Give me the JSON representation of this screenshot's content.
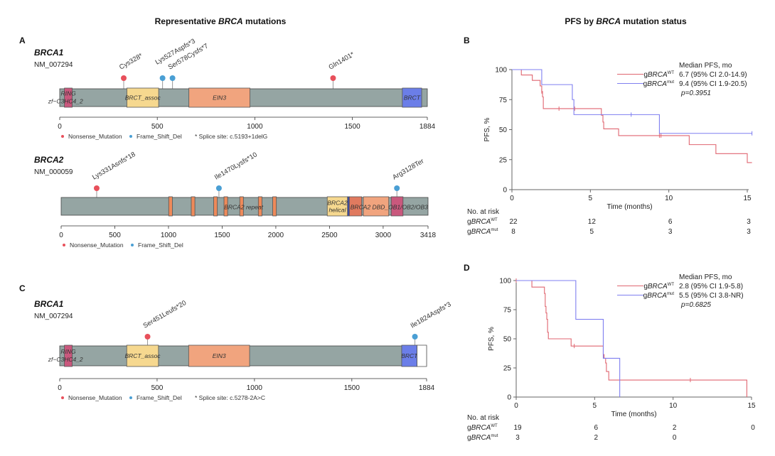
{
  "left_title": {
    "pre": "Representative ",
    "italic": "BRCA",
    "post": " mutations"
  },
  "right_title": {
    "pre": "PFS by ",
    "italic": "BRCA",
    "post": " mutation status"
  },
  "panels": {
    "A_brca1": {
      "letter": "A",
      "gene": "BRCA1",
      "transcript": "NM_007294",
      "length": 1884,
      "ticks": [
        0,
        500,
        1000,
        1500,
        1884
      ],
      "domains": [
        {
          "start": 24,
          "end": 64,
          "color": "#c9587d",
          "label": "RING"
        },
        {
          "start": 344,
          "end": 507,
          "color": "#f6d88f",
          "label": "BRCT_assoc"
        },
        {
          "start": 662,
          "end": 975,
          "color": "#f1a47e",
          "label": "EIN3"
        },
        {
          "start": 1756,
          "end": 1855,
          "color": "#6b7ee8",
          "label": "BRCT"
        }
      ],
      "extra_labels": [
        {
          "text": "zf−C3HC4_2",
          "pos": 30
        }
      ],
      "mutations": [
        {
          "label": "Cys328*",
          "pos": 328,
          "type": "nonsense"
        },
        {
          "label": "Lys527Aspfs*3",
          "pos": 527,
          "type": "frameshift"
        },
        {
          "label": "Ser578Cysfs*7",
          "pos": 578,
          "type": "frameshift"
        },
        {
          "label": "Gln1401*",
          "pos": 1401,
          "type": "nonsense"
        }
      ],
      "legend_note": "* Splice site: c.5193+1delG"
    },
    "A_brca2": {
      "gene": "BRCA2",
      "transcript": "NM_000059",
      "length": 3418,
      "ticks": [
        0,
        500,
        1000,
        1500,
        2000,
        2500,
        3000,
        3418
      ],
      "domains": [
        {
          "start": 1002,
          "end": 1036,
          "color": "#ee8a5a",
          "label": ""
        },
        {
          "start": 1212,
          "end": 1246,
          "color": "#ee8a5a",
          "label": ""
        },
        {
          "start": 1421,
          "end": 1455,
          "color": "#ee8a5a",
          "label": ""
        },
        {
          "start": 1517,
          "end": 1551,
          "color": "#ee8a5a",
          "label": ""
        },
        {
          "start": 1664,
          "end": 1698,
          "color": "#ee8a5a",
          "label": ""
        },
        {
          "start": 1837,
          "end": 1871,
          "color": "#ee8a5a",
          "label": ""
        },
        {
          "start": 1971,
          "end": 2005,
          "color": "#ee8a5a",
          "label": ""
        },
        {
          "start": 2479,
          "end": 2668,
          "color": "#f6d88f",
          "label": "BRCA2 helical"
        },
        {
          "start": 2668,
          "end": 2685,
          "color": "#3b4aa8",
          "label": ""
        },
        {
          "start": 2685,
          "end": 2800,
          "color": "#e07a5f",
          "label": ""
        },
        {
          "start": 2815,
          "end": 3052,
          "color": "#f1a47e",
          "label": ""
        },
        {
          "start": 3075,
          "end": 3185,
          "color": "#c9587d",
          "label": ""
        }
      ],
      "extra_labels": [
        {
          "text": "BRCA2 repeat",
          "pos": 1700
        },
        {
          "text": "BRCA2 DBD_OB1/OB2/OB3",
          "pos": 2960
        }
      ],
      "mutations": [
        {
          "label": "Lys331Asnfs*18",
          "pos": 331,
          "type": "nonsense"
        },
        {
          "label": "Ile1470Lysfs*10",
          "pos": 1470,
          "type": "frameshift"
        },
        {
          "label": "Arg3128Ter",
          "pos": 3128,
          "type": "frameshift"
        }
      ],
      "legend_note": ""
    },
    "C_brca1": {
      "letter": "C",
      "gene": "BRCA1",
      "transcript": "NM_007294",
      "length": 1884,
      "ticks": [
        0,
        500,
        1000,
        1500,
        1884
      ],
      "domains": [
        {
          "start": 24,
          "end": 64,
          "color": "#c9587d",
          "label": "RING"
        },
        {
          "start": 344,
          "end": 507,
          "color": "#f6d88f",
          "label": "BRCT_assoc"
        },
        {
          "start": 662,
          "end": 975,
          "color": "#f1a47e",
          "label": "EIN3"
        },
        {
          "start": 1756,
          "end": 1835,
          "color": "#6b7ee8",
          "label": "BRCT"
        },
        {
          "start": 1835,
          "end": 1884,
          "color": "#ffffff",
          "label": ""
        }
      ],
      "extra_labels": [
        {
          "text": "zf−C3HC4_2",
          "pos": 30
        }
      ],
      "mutations": [
        {
          "label": "Ser451Leufs*20",
          "pos": 451,
          "type": "nonsense"
        },
        {
          "label": "Ile1824Aspfs*3",
          "pos": 1824,
          "type": "frameshift"
        }
      ],
      "legend_note": "* Splice site: c.5278-2A>C"
    }
  },
  "legend": {
    "nonsense": "Nonsense_Mutation",
    "frameshift": "Frame_Shift_Del"
  },
  "colors": {
    "nonsense": "#e8505b",
    "frameshift": "#4a9fd4",
    "backbone": "#95a5a3",
    "wt": "#e06670",
    "mut": "#7f7ff0"
  },
  "chart_data": [
    {
      "type": "line",
      "letter": "B",
      "subtype": "kaplan-meier",
      "xlabel": "Time (months)",
      "ylabel": "PFS, %",
      "xlim": [
        0,
        15.3
      ],
      "ylim": [
        0,
        100
      ],
      "xticks": [
        0,
        5,
        10,
        15
      ],
      "yticks": [
        0,
        25,
        50,
        75,
        100
      ],
      "grid": false,
      "legend_placement": "top-right",
      "legend_title": "Median PFS, mo",
      "p_value": "p=0.3951",
      "series": [
        {
          "name": "WT",
          "color": "#e06670",
          "median": "6.7 (95% CI 2.0-14.9)",
          "time": [
            0,
            0.6,
            1.3,
            1.8,
            1.9,
            1.95,
            2.0,
            5.7,
            5.8,
            5.85,
            6.8,
            11.3,
            13.0,
            15.0
          ],
          "surv": [
            100,
            95.5,
            91,
            86.4,
            81.8,
            77.3,
            67.5,
            62,
            56.3,
            50.6,
            45,
            37.5,
            30,
            22.5
          ],
          "censor": [
            1.9,
            3.0,
            4.0,
            9.4,
            9.5
          ]
        },
        {
          "name": "mut",
          "color": "#7f7ff0",
          "median": "9.4 (95% CI 1.9-20.5)",
          "time": [
            0,
            1.9,
            3.85,
            3.95,
            9.4
          ],
          "surv": [
            100,
            87.5,
            75,
            62.5,
            46.9
          ],
          "censor": [
            7.6,
            15.3
          ]
        }
      ],
      "risk_table": {
        "title": "No. at risk",
        "times": [
          0,
          5,
          10,
          15
        ],
        "rows": [
          {
            "name": "WT",
            "values": [
              "22",
              "12",
              "6",
              "3"
            ]
          },
          {
            "name": "mut",
            "values": [
              "8",
              "5",
              "3",
              "3"
            ]
          }
        ]
      }
    },
    {
      "type": "line",
      "letter": "D",
      "subtype": "kaplan-meier",
      "xlabel": "Time (months)",
      "ylabel": "PFS, %",
      "xlim": [
        0,
        15
      ],
      "ylim": [
        0,
        100
      ],
      "xticks": [
        0,
        5,
        10,
        15
      ],
      "yticks": [
        0,
        25,
        50,
        75,
        100
      ],
      "grid": false,
      "legend_placement": "top-right",
      "legend_title": "Median PFS, mo",
      "p_value": "p=0.6825",
      "series": [
        {
          "name": "WT",
          "color": "#e06670",
          "median": "2.8 (95% CI 1.9-5.8)",
          "time": [
            0,
            1.0,
            1.8,
            1.85,
            1.9,
            1.95,
            2.0,
            2.05,
            3.5,
            5.55,
            5.6,
            5.7,
            5.75,
            5.9,
            14.7
          ],
          "surv": [
            100,
            94.4,
            88.9,
            77.8,
            72.2,
            66.7,
            55.6,
            50,
            43.8,
            36.5,
            33.3,
            29.2,
            21.9,
            14.6,
            0
          ],
          "censor": [
            0,
            3.7,
            11.1
          ]
        },
        {
          "name": "mut",
          "color": "#7f7ff0",
          "median": "5.5 (95% CI 3.8-NR)",
          "time": [
            0,
            3.8,
            5.55,
            6.6
          ],
          "surv": [
            100,
            66.7,
            33.3,
            0
          ],
          "censor": []
        }
      ],
      "risk_table": {
        "title": "No. at risk",
        "times": [
          0,
          5,
          10,
          15
        ],
        "rows": [
          {
            "name": "WT",
            "values": [
              "19",
              "6",
              "2",
              "0"
            ]
          },
          {
            "name": "mut",
            "values": [
              "3",
              "2",
              "0",
              ""
            ]
          }
        ]
      }
    }
  ],
  "group_label": {
    "prefix": "g",
    "gene": "BRCA",
    "wt_sup": "WT",
    "mut_sup": "mut"
  }
}
